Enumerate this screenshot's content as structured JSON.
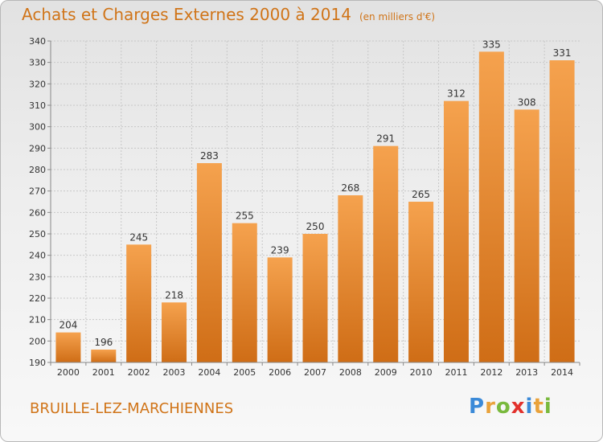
{
  "header": {
    "title": "Achats et Charges Externes 2000 à 2014",
    "unit": "(en milliers d'€)"
  },
  "footer": {
    "city": "BRUILLE-LEZ-MARCHIENNES",
    "logo_letters": [
      "P",
      "r",
      "o",
      "x",
      "i",
      "t",
      "i"
    ],
    "logo_colors": [
      "#3b8ad8",
      "#e9a23b",
      "#79b93d",
      "#e2312c",
      "#3b8ad8",
      "#e9a23b",
      "#79b93d"
    ]
  },
  "chart_data": {
    "type": "bar",
    "title": "Achats et Charges Externes 2000 à 2014",
    "subtitle": "(en milliers d'€)",
    "categories": [
      "2000",
      "2001",
      "2002",
      "2003",
      "2004",
      "2005",
      "2006",
      "2007",
      "2008",
      "2009",
      "2010",
      "2011",
      "2012",
      "2013",
      "2014"
    ],
    "values": [
      204,
      196,
      245,
      218,
      283,
      255,
      239,
      250,
      268,
      291,
      265,
      312,
      335,
      308,
      331
    ],
    "ylim": [
      190,
      340
    ],
    "yticks": [
      190,
      200,
      210,
      220,
      230,
      240,
      250,
      260,
      270,
      280,
      290,
      300,
      310,
      320,
      330,
      340
    ],
    "grid": true,
    "bar_color_top": "#f5a24e",
    "bar_color_bottom": "#cf6d16",
    "accent_color": "#d07418"
  }
}
